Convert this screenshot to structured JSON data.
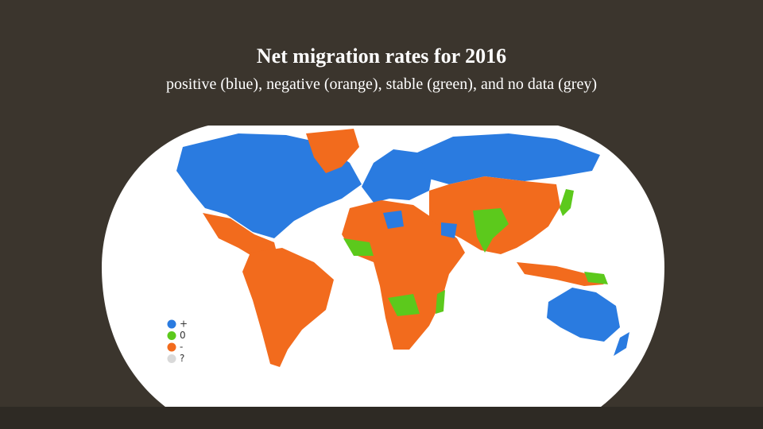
{
  "header": {
    "title": "Net migration rates for 2016",
    "subtitle": "positive (blue), negative (orange), stable (green), and no data (grey)"
  },
  "legend": [
    {
      "label": "+",
      "color": "#2a7be0"
    },
    {
      "label": "0",
      "color": "#5cc91c"
    },
    {
      "label": "-",
      "color": "#f26b1d"
    },
    {
      "label": "?",
      "color": "#d9d9d9"
    }
  ]
}
